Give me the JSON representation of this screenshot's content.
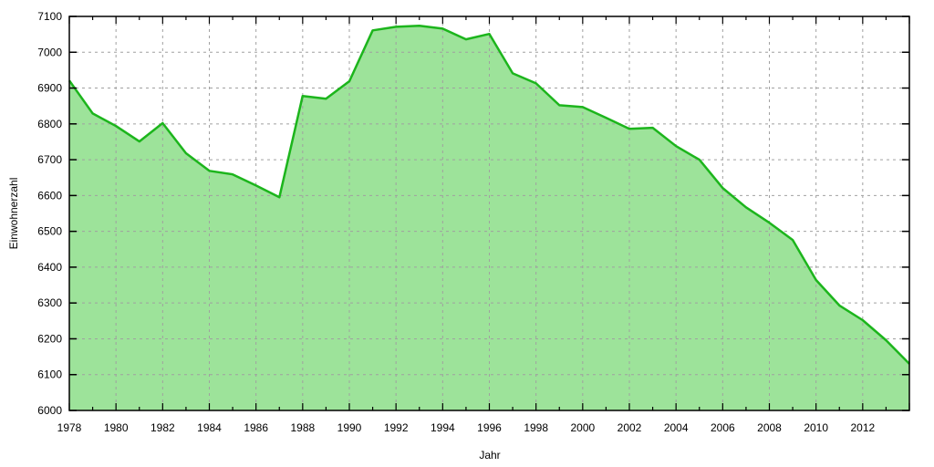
{
  "chart_data": {
    "type": "area",
    "title": "",
    "xlabel": "Jahr",
    "ylabel": "Einwohnerzahl",
    "xlim": [
      1978,
      2014
    ],
    "ylim": [
      6000,
      7100
    ],
    "grid": true,
    "x_ticks": [
      "1978",
      "1980",
      "1982",
      "1984",
      "1986",
      "1988",
      "1990",
      "1992",
      "1994",
      "1996",
      "1998",
      "2000",
      "2002",
      "2004",
      "2006",
      "2008",
      "2010",
      "2012"
    ],
    "y_ticks": [
      "6000",
      "6100",
      "6200",
      "6300",
      "6400",
      "6500",
      "6600",
      "6700",
      "6800",
      "6900",
      "7000",
      "7100"
    ],
    "colors": {
      "line": "#1cb51c",
      "fill": "#9de39a",
      "grid": "#a0a0a0"
    },
    "x": [
      1978,
      1979,
      1980,
      1981,
      1982,
      1983,
      1984,
      1985,
      1986,
      1987,
      1988,
      1989,
      1990,
      1991,
      1992,
      1993,
      1994,
      1995,
      1996,
      1997,
      1998,
      1999,
      2000,
      2001,
      2002,
      2003,
      2004,
      2005,
      2006,
      2007,
      2008,
      2009,
      2010,
      2011,
      2012,
      2013,
      2014
    ],
    "values": [
      6921,
      6829,
      6794,
      6751,
      6802,
      6718,
      6669,
      6659,
      6628,
      6595,
      6878,
      6870,
      6919,
      7061,
      7071,
      7074,
      7066,
      7036,
      7051,
      6941,
      6913,
      6852,
      6847,
      6817,
      6786,
      6789,
      6738,
      6700,
      6621,
      6567,
      6524,
      6476,
      6364,
      6293,
      6252,
      6196,
      6130
    ]
  }
}
